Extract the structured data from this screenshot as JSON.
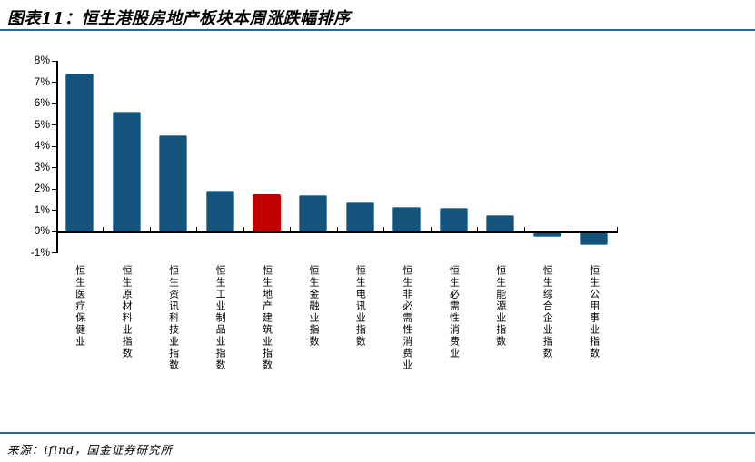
{
  "header": {
    "title": "图表11：恒生港股房地产板块本周涨跌幅排序"
  },
  "footer": {
    "source": "来源：ifind，国金证券研究所"
  },
  "colors": {
    "bar": "#14537c",
    "bar_edge": "#5a8cab",
    "highlight": "#c00000",
    "highlight_edge": "#c00000",
    "rule": "#2a6b95",
    "axis": "#000000"
  },
  "chart_data": {
    "type": "bar",
    "title": "图表11：恒生港股房地产板块本周涨跌幅排序",
    "categories": [
      "恒生医疗保健业",
      "恒生原材料业指数",
      "恒生资讯科技业指数",
      "恒生工业制品业指数",
      "恒生地产建筑业指数",
      "恒生金融业指数",
      "恒生电讯业指数",
      "恒生非必需性消费业",
      "恒生必需性消费业",
      "恒生能源业指数",
      "恒生综合企业指数",
      "恒生公用事业指数"
    ],
    "values": [
      7.4,
      5.6,
      4.5,
      1.9,
      1.75,
      1.7,
      1.35,
      1.15,
      1.1,
      0.75,
      -0.2,
      -0.6
    ],
    "unit": "%",
    "highlight_index": 4,
    "highlight_category": "恒生地产建筑业指数",
    "xlabel": "",
    "ylabel": "",
    "ylim": [
      -1,
      8
    ],
    "ytick_step": 1,
    "ytick_labels": [
      "8%",
      "7%",
      "6%",
      "5%",
      "4%",
      "3%",
      "2%",
      "1%",
      "0%",
      "-1%"
    ],
    "grid": false,
    "legend": "none"
  }
}
